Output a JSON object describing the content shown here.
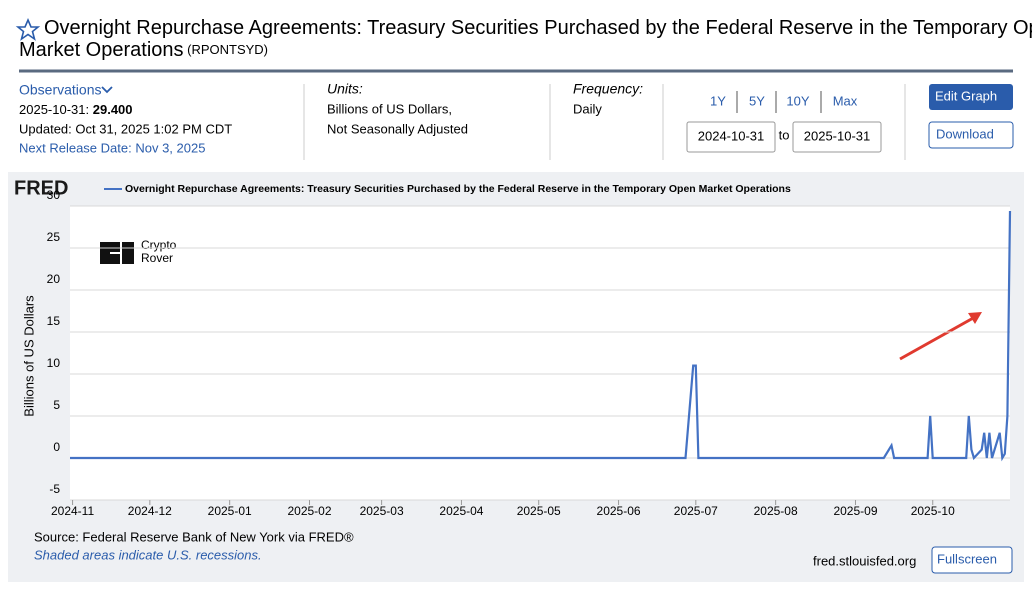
{
  "header": {
    "title": "Overnight Repurchase Agreements: Treasury Securities Purchased by the Federal Reserve in the Temporary Open Market Operations",
    "series_id": "(RPONTSYD)"
  },
  "info": {
    "observations": "Observations",
    "obs_date": "2025-10-31:",
    "obs_value": "29.400",
    "updated": "Updated: Oct 31, 2025 1:02 PM CDT",
    "next_release": "Next Release Date: Nov 3, 2025",
    "units_label": "Units:",
    "units_1": "Billions of US Dollars,",
    "units_2": "Not Seasonally Adjusted",
    "frequency_label": "Frequency:",
    "frequency": "Daily",
    "ranges": [
      "1Y",
      "5Y",
      "10Y",
      "Max"
    ],
    "start_date": "2024-10-31",
    "to": "to",
    "end_date": "2025-10-31",
    "edit_graph": "Edit Graph",
    "download": "Download"
  },
  "chart_data": {
    "type": "line",
    "logo": "FRED",
    "watermark": [
      "Crypto",
      "Rover"
    ],
    "ylabel": "Billions of US Dollars",
    "xlim": [
      "2024-10-31",
      "2025-10-31"
    ],
    "xticks": [
      "2024-11",
      "2024-12",
      "2025-01",
      "2025-02",
      "2025-03",
      "2025-04",
      "2025-05",
      "2025-06",
      "2025-07",
      "2025-08",
      "2025-09",
      "2025-10"
    ],
    "ylim": [
      -5,
      30
    ],
    "yticks": [
      -5,
      0,
      5,
      10,
      15,
      20,
      25,
      30
    ],
    "grid": true,
    "series": [
      {
        "name": "Overnight Repurchase Agreements: Treasury Securities Purchased by the Federal Reserve in the Temporary Open Market Operations",
        "color": "#4472c4",
        "x": [
          "2024-10-31",
          "2024-11-15",
          "2024-12-01",
          "2024-12-15",
          "2025-01-01",
          "2025-01-15",
          "2025-02-01",
          "2025-02-15",
          "2025-03-01",
          "2025-03-15",
          "2025-04-01",
          "2025-04-15",
          "2025-05-01",
          "2025-05-15",
          "2025-06-01",
          "2025-06-15",
          "2025-06-27",
          "2025-06-30",
          "2025-07-01",
          "2025-07-02",
          "2025-07-15",
          "2025-08-01",
          "2025-08-15",
          "2025-09-01",
          "2025-09-12",
          "2025-09-15",
          "2025-09-16",
          "2025-09-29",
          "2025-09-30",
          "2025-10-01",
          "2025-10-14",
          "2025-10-15",
          "2025-10-16",
          "2025-10-17",
          "2025-10-20",
          "2025-10-21",
          "2025-10-22",
          "2025-10-23",
          "2025-10-24",
          "2025-10-27",
          "2025-10-28",
          "2025-10-29",
          "2025-10-30",
          "2025-10-31"
        ],
        "values": [
          0,
          0,
          0,
          0,
          0,
          0,
          0,
          0,
          0,
          0,
          0,
          0,
          0,
          0,
          0,
          0,
          0,
          11,
          11,
          0,
          0,
          0,
          0,
          0,
          0,
          1.5,
          0,
          0,
          5,
          0,
          0,
          5,
          1,
          0,
          1,
          3,
          0,
          3,
          0,
          3,
          0,
          0.5,
          5,
          29.4
        ]
      }
    ]
  },
  "footer": {
    "source": "Source: Federal Reserve Bank of New York via FRED®",
    "recessions": "Shaded areas indicate U.S. recessions.",
    "site": "fred.stlouisfed.org",
    "fullscreen": "Fullscreen"
  }
}
